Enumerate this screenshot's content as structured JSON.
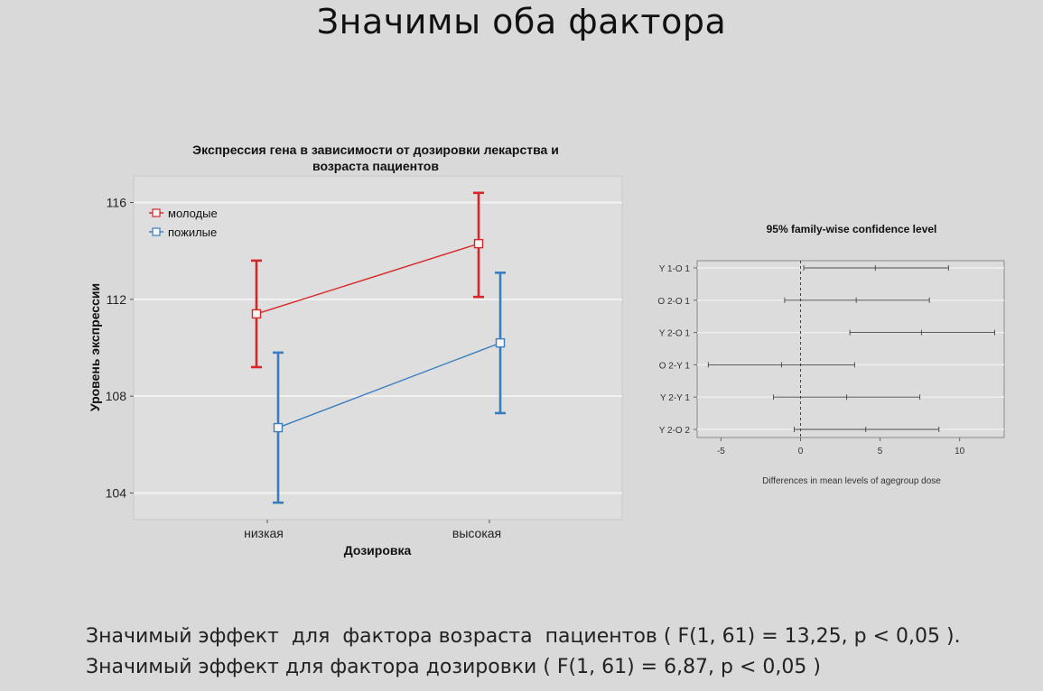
{
  "slide": {
    "title": "Значимы оба фактора",
    "footer_lines": [
      "Значимый эффект  для  фактора возраста  пациентов ( F(1, 61) = 13,25, p < 0,05 ).",
      "Значимый эффект для фактора дозировки ( F(1, 61) = 6,87, p < 0,05 )"
    ]
  },
  "chart_data": [
    {
      "type": "line",
      "title": "Экспрессия гена в зависимости от дозировки лекарства и возраста пациентов",
      "title_lines": [
        "Экспрессия гена в зависимости от дозировки лекарства и",
        "возраста пациентов"
      ],
      "xlabel": "Дозировка",
      "ylabel": "Уровень экспрессии",
      "categories": [
        "низкая",
        "высокая"
      ],
      "ylim": [
        102.9,
        117.1
      ],
      "yticks": [
        104,
        108,
        112,
        116
      ],
      "grid": true,
      "legend": "top-left",
      "series": [
        {
          "name": "молодые",
          "color": "#d62728",
          "values": [
            111.4,
            114.3
          ],
          "lower": [
            109.2,
            112.1
          ],
          "upper": [
            113.6,
            116.4
          ]
        },
        {
          "name": "пожилые",
          "color": "#3a7dbf",
          "values": [
            106.7,
            110.2
          ],
          "lower": [
            103.6,
            107.3
          ],
          "upper": [
            109.8,
            113.1
          ]
        }
      ]
    },
    {
      "type": "scatter",
      "title": "95% family-wise confidence level",
      "xlabel": "Differences in mean levels of agegroup dose",
      "xlim": [
        -6.5,
        12.8
      ],
      "xticks": [
        -5,
        0,
        5,
        10
      ],
      "reference_line": 0,
      "comparisons": [
        {
          "label": "Y 1-O 1",
          "diff": 4.7,
          "lwr": 0.2,
          "upr": 9.3
        },
        {
          "label": "O 2-O 1",
          "diff": 3.5,
          "lwr": -1.0,
          "upr": 8.1
        },
        {
          "label": "Y 2-O 1",
          "diff": 7.6,
          "lwr": 3.1,
          "upr": 12.2
        },
        {
          "label": "O 2-Y 1",
          "diff": -1.2,
          "lwr": -5.8,
          "upr": 3.4
        },
        {
          "label": "Y 2-Y 1",
          "diff": 2.9,
          "lwr": -1.7,
          "upr": 7.5
        },
        {
          "label": "Y 2-O 2",
          "diff": 4.1,
          "lwr": -0.4,
          "upr": 8.7
        }
      ]
    }
  ]
}
